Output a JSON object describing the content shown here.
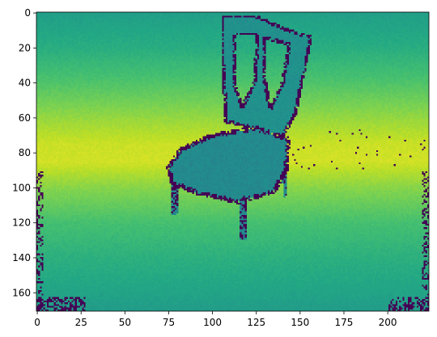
{
  "chart_data": {
    "type": "heatmap",
    "title": "",
    "xlabel": "",
    "ylabel": "",
    "colormap": "viridis",
    "image_shape": [
      171,
      224
    ],
    "xlim": [
      -0.5,
      223.5
    ],
    "ylim": [
      170.5,
      -0.5
    ],
    "x_ticks": [
      0,
      25,
      50,
      75,
      100,
      125,
      150,
      175,
      200
    ],
    "x_tick_labels": [
      "0",
      "25",
      "50",
      "75",
      "100",
      "125",
      "150",
      "175",
      "200"
    ],
    "y_ticks": [
      0,
      20,
      40,
      60,
      80,
      100,
      120,
      140,
      160
    ],
    "y_tick_labels": [
      "0",
      "20",
      "40",
      "60",
      "80",
      "100",
      "120",
      "140",
      "160"
    ],
    "background_profile": {
      "rows": [
        0,
        20,
        40,
        60,
        75,
        85,
        100,
        120,
        140,
        160,
        170
      ],
      "values": [
        0.56,
        0.62,
        0.72,
        0.84,
        0.92,
        0.93,
        0.82,
        0.7,
        0.63,
        0.58,
        0.55
      ]
    },
    "chair": {
      "back_frame": [
        [
          106,
          2
        ],
        [
          125,
          2
        ],
        [
          143,
          10
        ],
        [
          156,
          14
        ],
        [
          147,
          58
        ],
        [
          140,
          70
        ],
        [
          108,
          62
        ],
        [
          106,
          30
        ]
      ],
      "back_holes": [
        [
          [
            113,
            12
          ],
          [
            126,
            12
          ],
          [
            124,
            40
          ],
          [
            117,
            54
          ],
          [
            112,
            40
          ]
        ],
        [
          [
            130,
            14
          ],
          [
            144,
            18
          ],
          [
            140,
            40
          ],
          [
            133,
            55
          ],
          [
            129,
            35
          ]
        ]
      ],
      "back_value": 0.5,
      "seat": [
        [
          75,
          88
        ],
        [
          82,
          78
        ],
        [
          100,
          70
        ],
        [
          125,
          66
        ],
        [
          143,
          72
        ],
        [
          142,
          90
        ],
        [
          135,
          102
        ],
        [
          115,
          108
        ],
        [
          92,
          103
        ],
        [
          77,
          97
        ]
      ],
      "seat_value": 0.47,
      "legs": [
        [
          [
            77,
            96
          ],
          [
            81,
            98
          ],
          [
            80,
            115
          ],
          [
            77,
            116
          ]
        ],
        [
          [
            115,
            105
          ],
          [
            120,
            105
          ],
          [
            120,
            129
          ],
          [
            116,
            130
          ]
        ],
        [
          [
            139,
            88
          ],
          [
            143,
            88
          ],
          [
            143,
            104
          ],
          [
            141,
            106
          ]
        ]
      ]
    }
  }
}
